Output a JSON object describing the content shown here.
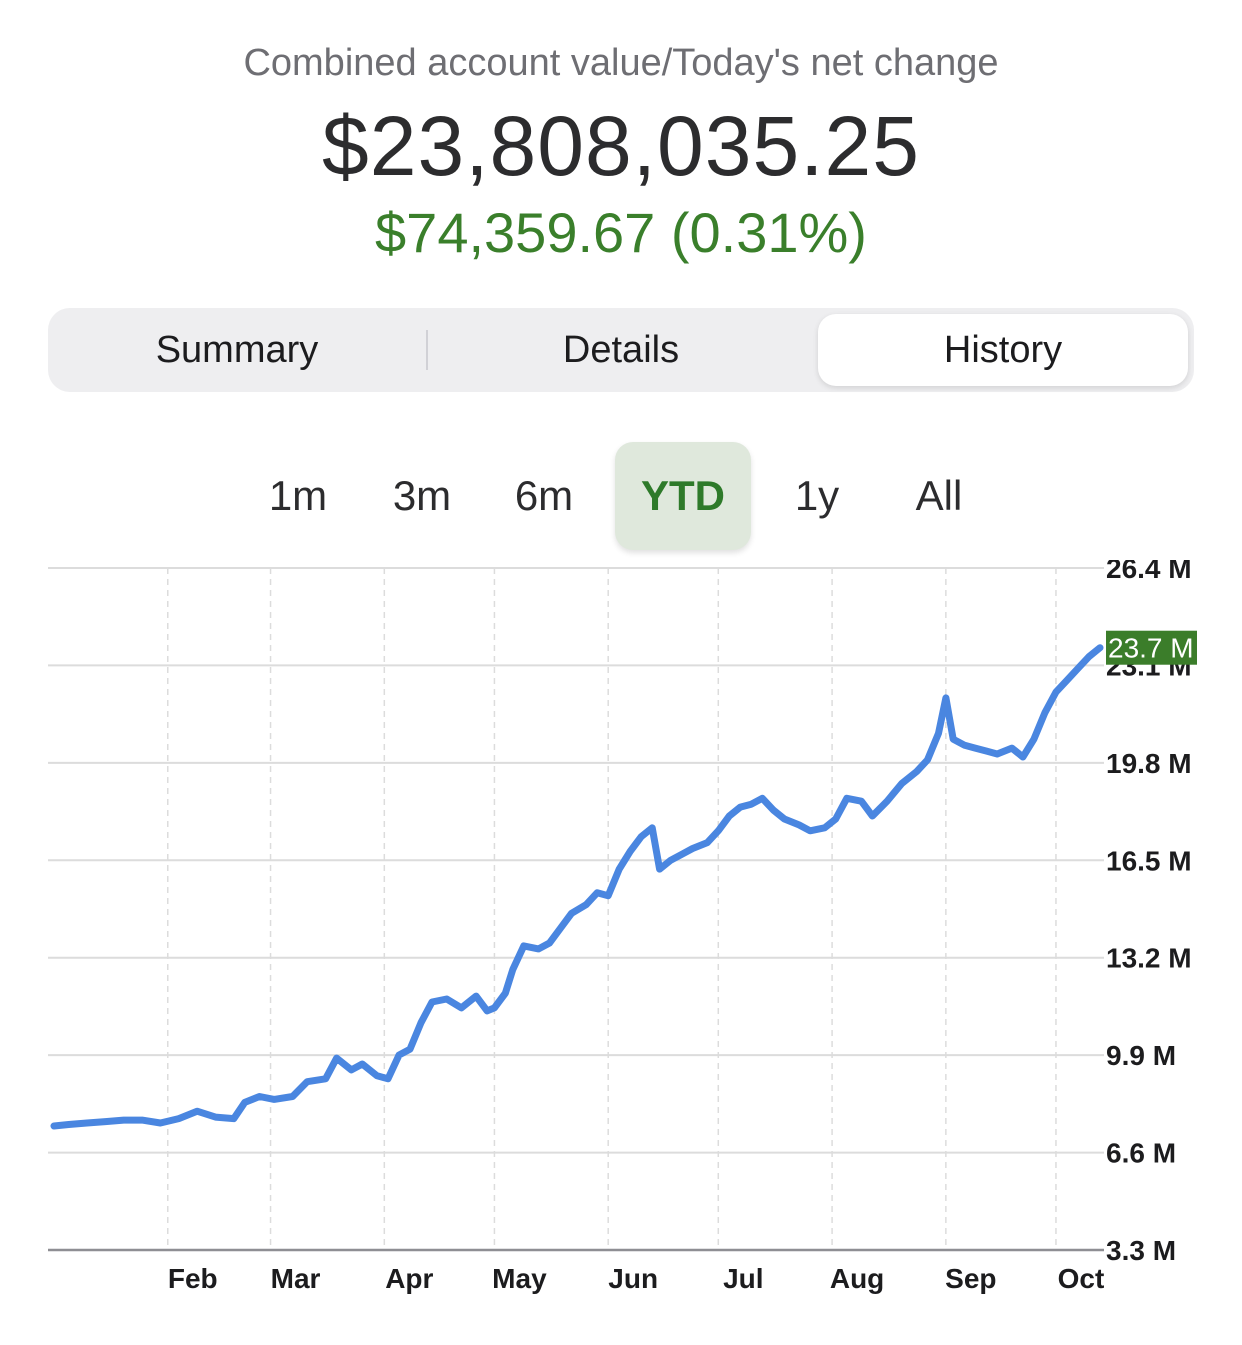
{
  "header": {
    "label": "Combined account value/Today's net change",
    "total_value": "$23,808,035.25",
    "net_change": "$74,359.67 (0.31%)"
  },
  "tabs": [
    {
      "label": "Summary",
      "selected": false
    },
    {
      "label": "Details",
      "selected": false
    },
    {
      "label": "History",
      "selected": true
    }
  ],
  "ranges": [
    {
      "label": "1m",
      "selected": false
    },
    {
      "label": "3m",
      "selected": false
    },
    {
      "label": "6m",
      "selected": false
    },
    {
      "label": "YTD",
      "selected": true
    },
    {
      "label": "1y",
      "selected": false
    },
    {
      "label": "All",
      "selected": false
    }
  ],
  "colors": {
    "line": "#4a86e0",
    "positive": "#3a7f2b",
    "current_badge": "#3b7d2a"
  },
  "chart_data": {
    "type": "line",
    "ylim": [
      3.3,
      26.4
    ],
    "yticks": [
      {
        "value": 26.4,
        "label": "26.4 M"
      },
      {
        "value": 23.1,
        "label": "23.1 M"
      },
      {
        "value": 19.8,
        "label": "19.8 M"
      },
      {
        "value": 16.5,
        "label": "16.5 M"
      },
      {
        "value": 13.2,
        "label": "13.2 M"
      },
      {
        "value": 9.9,
        "label": "9.9 M"
      },
      {
        "value": 6.6,
        "label": "6.6 M"
      },
      {
        "value": 3.3,
        "label": "3.3 M"
      }
    ],
    "xlim": [
      1,
      286
    ],
    "months": [
      {
        "label": "Feb",
        "day": 32
      },
      {
        "label": "Mar",
        "day": 60
      },
      {
        "label": "Apr",
        "day": 91
      },
      {
        "label": "May",
        "day": 121
      },
      {
        "label": "Jun",
        "day": 152
      },
      {
        "label": "Jul",
        "day": 182
      },
      {
        "label": "Aug",
        "day": 213
      },
      {
        "label": "Sep",
        "day": 244
      },
      {
        "label": "Oct",
        "day": 274
      }
    ],
    "current_label": "23.7 M",
    "grid": true,
    "series": [
      {
        "points": [
          [
            1,
            7.5
          ],
          [
            5,
            7.55
          ],
          [
            10,
            7.6
          ],
          [
            15,
            7.65
          ],
          [
            20,
            7.7
          ],
          [
            25,
            7.7
          ],
          [
            30,
            7.6
          ],
          [
            35,
            7.75
          ],
          [
            40,
            8.0
          ],
          [
            45,
            7.8
          ],
          [
            50,
            7.75
          ],
          [
            53,
            8.3
          ],
          [
            57,
            8.5
          ],
          [
            61,
            8.4
          ],
          [
            66,
            8.5
          ],
          [
            70,
            9.0
          ],
          [
            75,
            9.1
          ],
          [
            78,
            9.8
          ],
          [
            82,
            9.4
          ],
          [
            85,
            9.6
          ],
          [
            89,
            9.2
          ],
          [
            92,
            9.1
          ],
          [
            95,
            9.9
          ],
          [
            98,
            10.1
          ],
          [
            101,
            11.0
          ],
          [
            104,
            11.7
          ],
          [
            108,
            11.8
          ],
          [
            112,
            11.5
          ],
          [
            116,
            11.9
          ],
          [
            119,
            11.4
          ],
          [
            121,
            11.5
          ],
          [
            124,
            12.0
          ],
          [
            126,
            12.8
          ],
          [
            129,
            13.6
          ],
          [
            133,
            13.5
          ],
          [
            136,
            13.7
          ],
          [
            139,
            14.2
          ],
          [
            142,
            14.7
          ],
          [
            146,
            15.0
          ],
          [
            149,
            15.4
          ],
          [
            152,
            15.3
          ],
          [
            155,
            16.2
          ],
          [
            158,
            16.8
          ],
          [
            161,
            17.3
          ],
          [
            164,
            17.6
          ],
          [
            166,
            16.2
          ],
          [
            169,
            16.5
          ],
          [
            172,
            16.7
          ],
          [
            175,
            16.9
          ],
          [
            179,
            17.1
          ],
          [
            182,
            17.5
          ],
          [
            185,
            18.0
          ],
          [
            188,
            18.3
          ],
          [
            191,
            18.4
          ],
          [
            194,
            18.6
          ],
          [
            197,
            18.2
          ],
          [
            200,
            17.9
          ],
          [
            204,
            17.7
          ],
          [
            207,
            17.5
          ],
          [
            211,
            17.6
          ],
          [
            214,
            17.9
          ],
          [
            217,
            18.6
          ],
          [
            221,
            18.5
          ],
          [
            224,
            18.0
          ],
          [
            228,
            18.5
          ],
          [
            232,
            19.1
          ],
          [
            236,
            19.5
          ],
          [
            239,
            19.9
          ],
          [
            242,
            20.8
          ],
          [
            244,
            22.0
          ],
          [
            246,
            20.6
          ],
          [
            249,
            20.4
          ],
          [
            252,
            20.3
          ],
          [
            255,
            20.2
          ],
          [
            258,
            20.1
          ],
          [
            262,
            20.3
          ],
          [
            265,
            20.0
          ],
          [
            268,
            20.6
          ],
          [
            271,
            21.5
          ],
          [
            274,
            22.2
          ],
          [
            277,
            22.6
          ],
          [
            280,
            23.0
          ],
          [
            283,
            23.4
          ],
          [
            286,
            23.7
          ]
        ]
      }
    ]
  }
}
